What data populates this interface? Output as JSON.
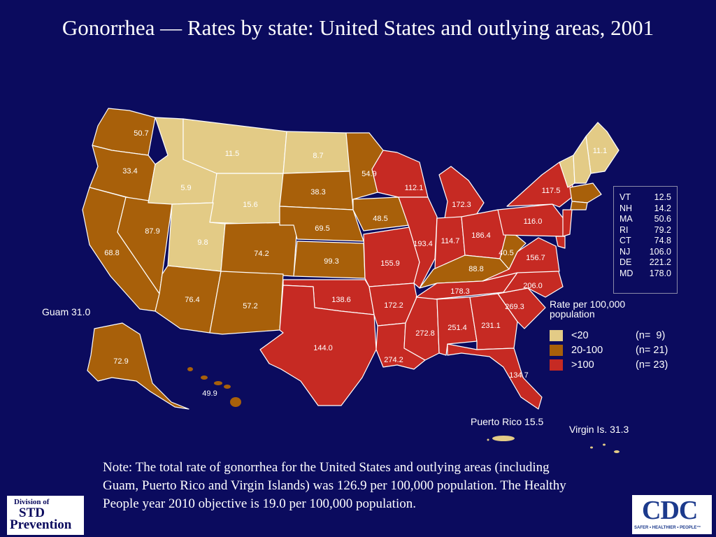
{
  "title": "Gonorrhea — Rates by state: United States and outlying areas, 2001",
  "colors": {
    "background": "#0b0b5e",
    "low": "#e3cb86",
    "mid": "#a8600a",
    "high": "#c62a23"
  },
  "states": [
    {
      "abbr": "WA",
      "rate": "50.7",
      "cat": "mid"
    },
    {
      "abbr": "OR",
      "rate": "33.4",
      "cat": "mid"
    },
    {
      "abbr": "CA",
      "rate": "68.8",
      "cat": "mid"
    },
    {
      "abbr": "NV",
      "rate": "87.9",
      "cat": "mid"
    },
    {
      "abbr": "ID",
      "rate": "5.9",
      "cat": "low"
    },
    {
      "abbr": "MT",
      "rate": "11.5",
      "cat": "low"
    },
    {
      "abbr": "WY",
      "rate": "15.6",
      "cat": "low"
    },
    {
      "abbr": "UT",
      "rate": "9.8",
      "cat": "low"
    },
    {
      "abbr": "AZ",
      "rate": "76.4",
      "cat": "mid"
    },
    {
      "abbr": "CO",
      "rate": "74.2",
      "cat": "mid"
    },
    {
      "abbr": "NM",
      "rate": "57.2",
      "cat": "mid"
    },
    {
      "abbr": "ND",
      "rate": "8.7",
      "cat": "low"
    },
    {
      "abbr": "SD",
      "rate": "38.3",
      "cat": "mid"
    },
    {
      "abbr": "NE",
      "rate": "69.5",
      "cat": "mid"
    },
    {
      "abbr": "KS",
      "rate": "99.3",
      "cat": "mid"
    },
    {
      "abbr": "OK",
      "rate": "138.6",
      "cat": "high"
    },
    {
      "abbr": "TX",
      "rate": "144.0",
      "cat": "high"
    },
    {
      "abbr": "MN",
      "rate": "54.9",
      "cat": "mid"
    },
    {
      "abbr": "IA",
      "rate": "48.5",
      "cat": "mid"
    },
    {
      "abbr": "MO",
      "rate": "155.9",
      "cat": "high"
    },
    {
      "abbr": "AR",
      "rate": "172.2",
      "cat": "high"
    },
    {
      "abbr": "LA",
      "rate": "274.2",
      "cat": "high"
    },
    {
      "abbr": "WI",
      "rate": "112.1",
      "cat": "high"
    },
    {
      "abbr": "IL",
      "rate": "193.4",
      "cat": "high"
    },
    {
      "abbr": "MI",
      "rate": "172.3",
      "cat": "high"
    },
    {
      "abbr": "IN",
      "rate": "114.7",
      "cat": "high"
    },
    {
      "abbr": "OH",
      "rate": "186.4",
      "cat": "high"
    },
    {
      "abbr": "KY",
      "rate": "88.8",
      "cat": "mid"
    },
    {
      "abbr": "TN",
      "rate": "178.3",
      "cat": "high"
    },
    {
      "abbr": "MS",
      "rate": "272.8",
      "cat": "high"
    },
    {
      "abbr": "AL",
      "rate": "251.4",
      "cat": "high"
    },
    {
      "abbr": "GA",
      "rate": "231.1",
      "cat": "high"
    },
    {
      "abbr": "FL",
      "rate": "134.7",
      "cat": "high"
    },
    {
      "abbr": "SC",
      "rate": "269.3",
      "cat": "high"
    },
    {
      "abbr": "NC",
      "rate": "206.0",
      "cat": "high"
    },
    {
      "abbr": "VA",
      "rate": "156.7",
      "cat": "high"
    },
    {
      "abbr": "WV",
      "rate": "40.5",
      "cat": "mid"
    },
    {
      "abbr": "PA",
      "rate": "116.0",
      "cat": "high"
    },
    {
      "abbr": "NY",
      "rate": "117.5",
      "cat": "high"
    },
    {
      "abbr": "ME",
      "rate": "11.1",
      "cat": "low"
    },
    {
      "abbr": "AK",
      "rate": "72.9",
      "cat": "mid"
    },
    {
      "abbr": "HI",
      "rate": "49.9",
      "cat": "mid"
    }
  ],
  "small_states": [
    {
      "abbr": "VT",
      "rate": "12.5"
    },
    {
      "abbr": "NH",
      "rate": "14.2"
    },
    {
      "abbr": "MA",
      "rate": "50.6"
    },
    {
      "abbr": "RI",
      "rate": "79.2"
    },
    {
      "abbr": "CT",
      "rate": "74.8"
    },
    {
      "abbr": "NJ",
      "rate": "106.0"
    },
    {
      "abbr": "DE",
      "rate": "221.2"
    },
    {
      "abbr": "MD",
      "rate": "178.0"
    }
  ],
  "territories": {
    "guam": "Guam 31.0",
    "puerto_rico": "Puerto Rico 15.5",
    "virgin_islands": "Virgin Is. 31.3"
  },
  "legend": {
    "title": "Rate per 100,000 population",
    "items": [
      {
        "label": "<20",
        "count": "(n=  9)",
        "cat": "low"
      },
      {
        "label": "20-100",
        "count": "(n= 21)",
        "cat": "mid"
      },
      {
        "label": ">100",
        "count": "(n= 23)",
        "cat": "high"
      }
    ]
  },
  "note": "Note:  The total rate of gonorrhea for the United States and outlying areas (including Guam, Puerto Rico and Virgin Islands) was 126.9 per 100,000 population. The Healthy People year 2010 objective is 19.0 per 100,000 population.",
  "logos": {
    "std": {
      "line1": "Division of",
      "line2": "STD",
      "line3": "Prevention"
    },
    "cdc": {
      "text": "CDC",
      "tagline": "SAFER • HEALTHIER • PEOPLE™"
    }
  }
}
